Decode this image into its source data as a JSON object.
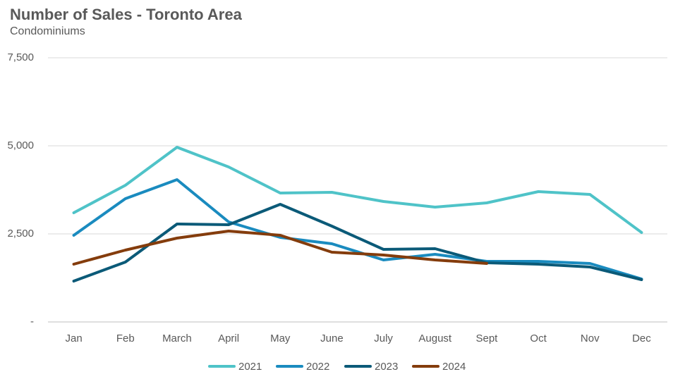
{
  "chart_data": {
    "type": "line",
    "title": "Number of Sales - Toronto Area",
    "subtitle": "Condominiums",
    "categories": [
      "Jan",
      "Feb",
      "March",
      "April",
      "May",
      "June",
      "July",
      "August",
      "Sept",
      "Oct",
      "Nov",
      "Dec"
    ],
    "series": [
      {
        "name": "2021",
        "color": "#4fc3c8",
        "values": [
          3100,
          3880,
          4960,
          4400,
          3660,
          3680,
          3420,
          3260,
          3380,
          3700,
          3620,
          2540
        ]
      },
      {
        "name": "2022",
        "color": "#1a8bbf",
        "values": [
          2460,
          3500,
          4040,
          2840,
          2400,
          2220,
          1760,
          1920,
          1720,
          1720,
          1660,
          1220
        ]
      },
      {
        "name": "2023",
        "color": "#0b5a78",
        "values": [
          1160,
          1700,
          2780,
          2760,
          3340,
          2720,
          2060,
          2080,
          1680,
          1640,
          1560,
          1200
        ]
      },
      {
        "name": "2024",
        "color": "#843c0c",
        "values": [
          1640,
          2040,
          2380,
          2580,
          2460,
          1980,
          1900,
          1760,
          1660,
          null,
          null,
          null
        ]
      }
    ],
    "ylim": [
      0,
      7500
    ],
    "yticks": [
      {
        "value": 0,
        "label": "-"
      },
      {
        "value": 2500,
        "label": "2,500"
      },
      {
        "value": 5000,
        "label": "5,000"
      },
      {
        "value": 7500,
        "label": "7,500"
      }
    ],
    "grid": true,
    "legend": "bottom"
  }
}
